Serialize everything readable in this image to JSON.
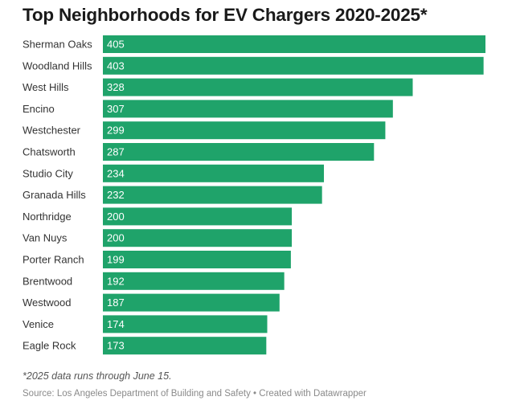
{
  "chart_data": {
    "type": "bar",
    "orientation": "horizontal",
    "title": "Top Neighborhoods for EV Chargers 2020-2025*",
    "categories": [
      "Sherman Oaks",
      "Woodland Hills",
      "West Hills",
      "Encino",
      "Westchester",
      "Chatsworth",
      "Studio City",
      "Granada Hills",
      "Northridge",
      "Van Nuys",
      "Porter Ranch",
      "Brentwood",
      "Westwood",
      "Venice",
      "Eagle Rock"
    ],
    "values": [
      405,
      403,
      328,
      307,
      299,
      287,
      234,
      232,
      200,
      200,
      199,
      192,
      187,
      174,
      173
    ],
    "value_labels": [
      "405",
      "403",
      "328",
      "307",
      "299",
      "287",
      "234",
      "232",
      "200",
      "200",
      "199",
      "192",
      "187",
      "174",
      "173"
    ],
    "bar_color": "#1fa36a",
    "grid": false,
    "legend": "none"
  },
  "footnote": "*2025 data runs through June 15.",
  "source": "Source: Los Angeles Department of Building and Safety • Created with Datawrapper"
}
